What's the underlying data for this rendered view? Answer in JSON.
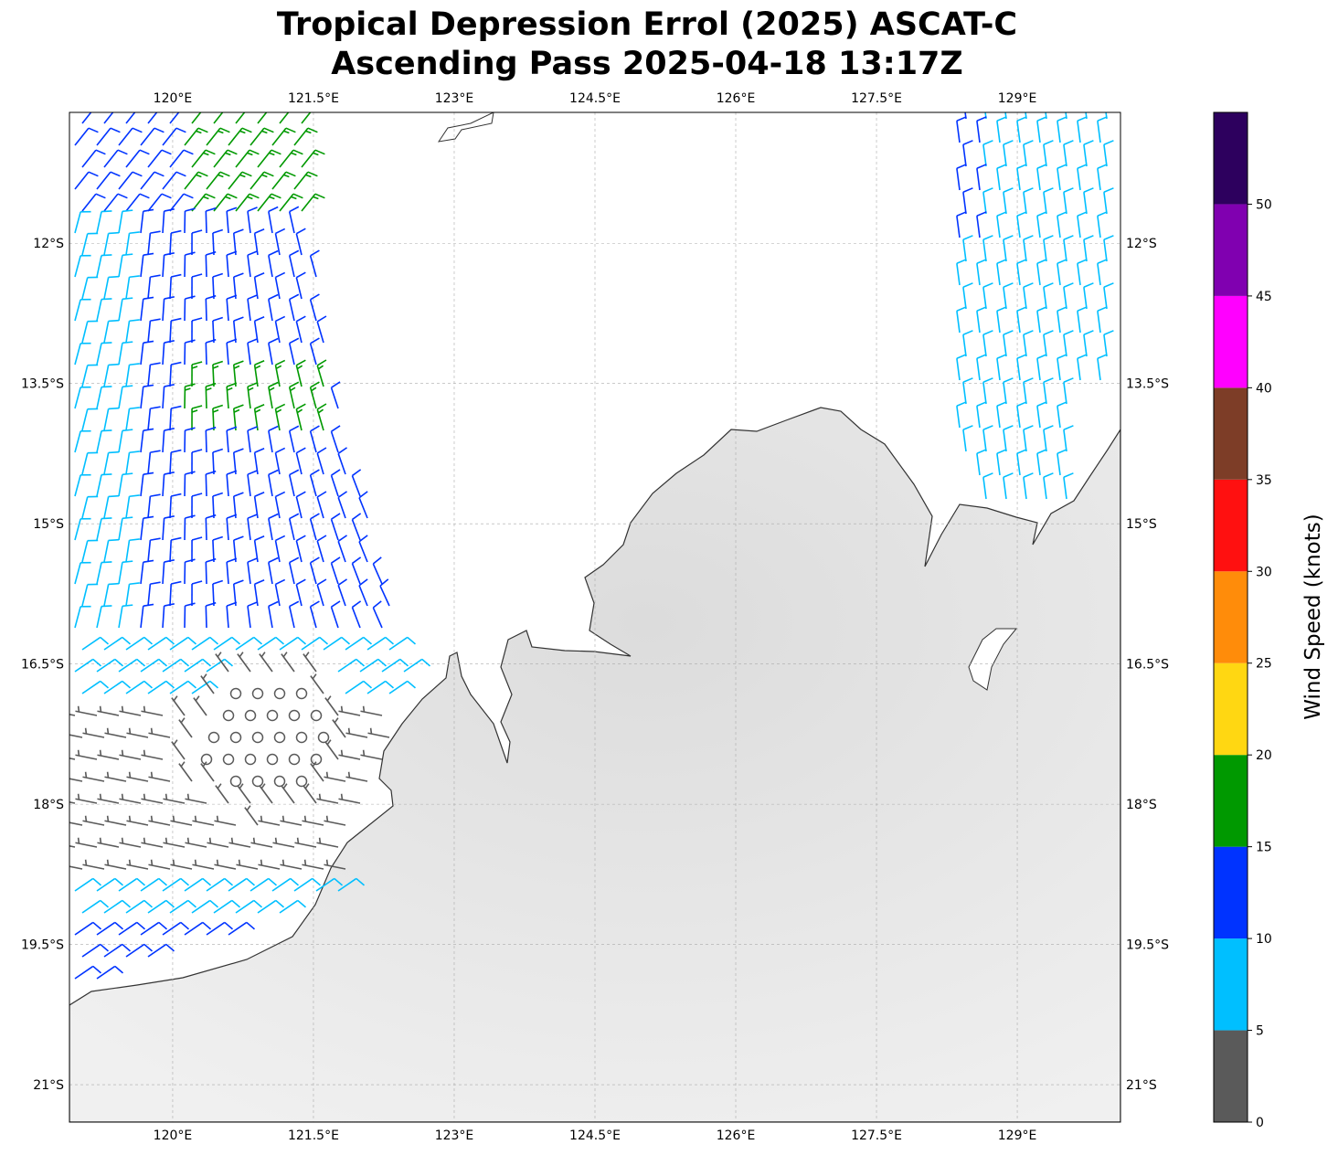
{
  "title": {
    "line1": "Tropical Depression Errol (2025) ASCAT-C",
    "line2": "Ascending Pass 2025-04-18 13:17Z"
  },
  "map": {
    "lon_range": [
      118.9,
      130.1
    ],
    "lat_range": [
      -21.4,
      -10.6
    ],
    "lon_ticks": [
      120,
      121.5,
      123,
      124.5,
      126,
      127.5,
      129
    ],
    "lon_labels": [
      "120°E",
      "121.5°E",
      "123°E",
      "124.5°E",
      "126°E",
      "127.5°E",
      "129°E"
    ],
    "lat_ticks": [
      -12,
      -13.5,
      -15,
      -16.5,
      -18,
      -19.5,
      -21
    ],
    "lat_labels": [
      "12°S",
      "13.5°S",
      "15°S",
      "16.5°S",
      "18°S",
      "19.5°S",
      "21°S"
    ],
    "grid": true,
    "land_color": "#e6e6e6",
    "coast_color": "#333333"
  },
  "colorbar": {
    "label": "Wind Speed (knots)",
    "bounds": [
      0,
      5,
      10,
      15,
      20,
      25,
      30,
      35,
      40,
      45,
      50,
      55
    ],
    "tick_labels": [
      "0",
      "5",
      "10",
      "15",
      "20",
      "25",
      "30",
      "35",
      "40",
      "45",
      "50"
    ],
    "colors": [
      "#5a5a5a",
      "#00bfff",
      "#0033ff",
      "#009900",
      "#ffd712",
      "#ff8c0a",
      "#ff1010",
      "#7d3d27",
      "#ff00ff",
      "#8000b0",
      "#2d005e"
    ]
  }
}
